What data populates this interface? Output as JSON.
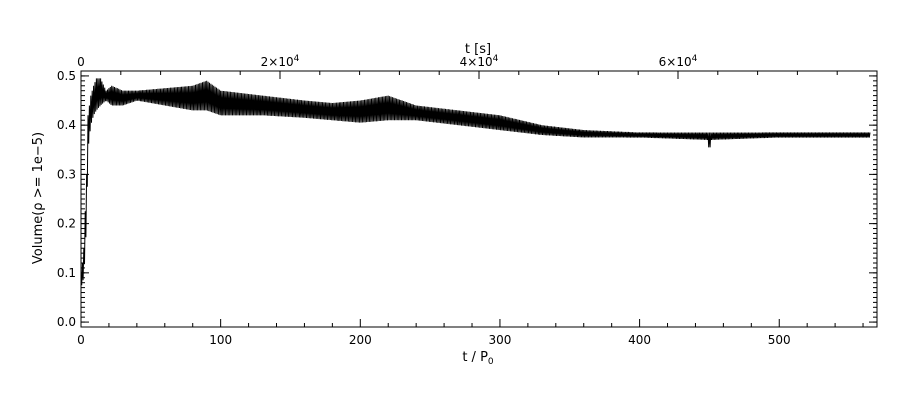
{
  "chart_data": {
    "type": "line",
    "title": "",
    "xlabel": "t / P",
    "xlabel_sub": "0",
    "ylabel": "Volume(ρ >= 1e−5)",
    "top_axis_label": "t [s]",
    "xlim": [
      0,
      570
    ],
    "ylim": [
      -0.01,
      0.51
    ],
    "x_ticks": [
      "0",
      "100",
      "200",
      "300",
      "400",
      "500"
    ],
    "y_ticks": [
      "0.0",
      "0.1",
      "0.2",
      "0.3",
      "0.4",
      "0.5"
    ],
    "top_ticks": [
      {
        "label": "0",
        "base": "0",
        "exp": ""
      },
      {
        "label": "2×10^4",
        "base": "2×10",
        "exp": "4"
      },
      {
        "label": "4×10^4",
        "base": "4×10",
        "exp": "4"
      },
      {
        "label": "6×10^4",
        "base": "6×10",
        "exp": "4"
      }
    ],
    "top_axis_range_s": [
      0,
      80000
    ],
    "grid": false,
    "legend": "none",
    "series": [
      {
        "color": "#000000",
        "envelope_upper": [
          [
            0,
            0.09
          ],
          [
            2,
            0.15
          ],
          [
            4,
            0.3
          ],
          [
            5,
            0.42
          ],
          [
            7,
            0.46
          ],
          [
            9,
            0.48
          ],
          [
            11,
            0.495
          ],
          [
            14,
            0.495
          ],
          [
            18,
            0.47
          ],
          [
            22,
            0.48
          ],
          [
            30,
            0.47
          ],
          [
            40,
            0.47
          ],
          [
            60,
            0.475
          ],
          [
            80,
            0.48
          ],
          [
            90,
            0.49
          ],
          [
            100,
            0.47
          ],
          [
            130,
            0.46
          ],
          [
            160,
            0.45
          ],
          [
            180,
            0.445
          ],
          [
            200,
            0.45
          ],
          [
            220,
            0.46
          ],
          [
            240,
            0.44
          ],
          [
            270,
            0.43
          ],
          [
            300,
            0.42
          ],
          [
            330,
            0.4
          ],
          [
            360,
            0.39
          ],
          [
            400,
            0.385
          ],
          [
            449,
            0.385
          ],
          [
            450,
            0.385
          ],
          [
            451,
            0.385
          ],
          [
            500,
            0.385
          ],
          [
            565,
            0.385
          ]
        ],
        "envelope_lower": [
          [
            0,
            0.07
          ],
          [
            2,
            0.09
          ],
          [
            4,
            0.2
          ],
          [
            5,
            0.35
          ],
          [
            7,
            0.4
          ],
          [
            9,
            0.42
          ],
          [
            11,
            0.43
          ],
          [
            14,
            0.44
          ],
          [
            18,
            0.45
          ],
          [
            22,
            0.44
          ],
          [
            30,
            0.44
          ],
          [
            40,
            0.45
          ],
          [
            60,
            0.44
          ],
          [
            80,
            0.43
          ],
          [
            90,
            0.43
          ],
          [
            100,
            0.42
          ],
          [
            130,
            0.42
          ],
          [
            160,
            0.415
          ],
          [
            180,
            0.41
          ],
          [
            200,
            0.405
          ],
          [
            220,
            0.41
          ],
          [
            240,
            0.41
          ],
          [
            270,
            0.4
          ],
          [
            300,
            0.39
          ],
          [
            330,
            0.38
          ],
          [
            360,
            0.375
          ],
          [
            400,
            0.375
          ],
          [
            449,
            0.37
          ],
          [
            450,
            0.34
          ],
          [
            451,
            0.37
          ],
          [
            500,
            0.375
          ],
          [
            565,
            0.375
          ]
        ]
      }
    ]
  }
}
